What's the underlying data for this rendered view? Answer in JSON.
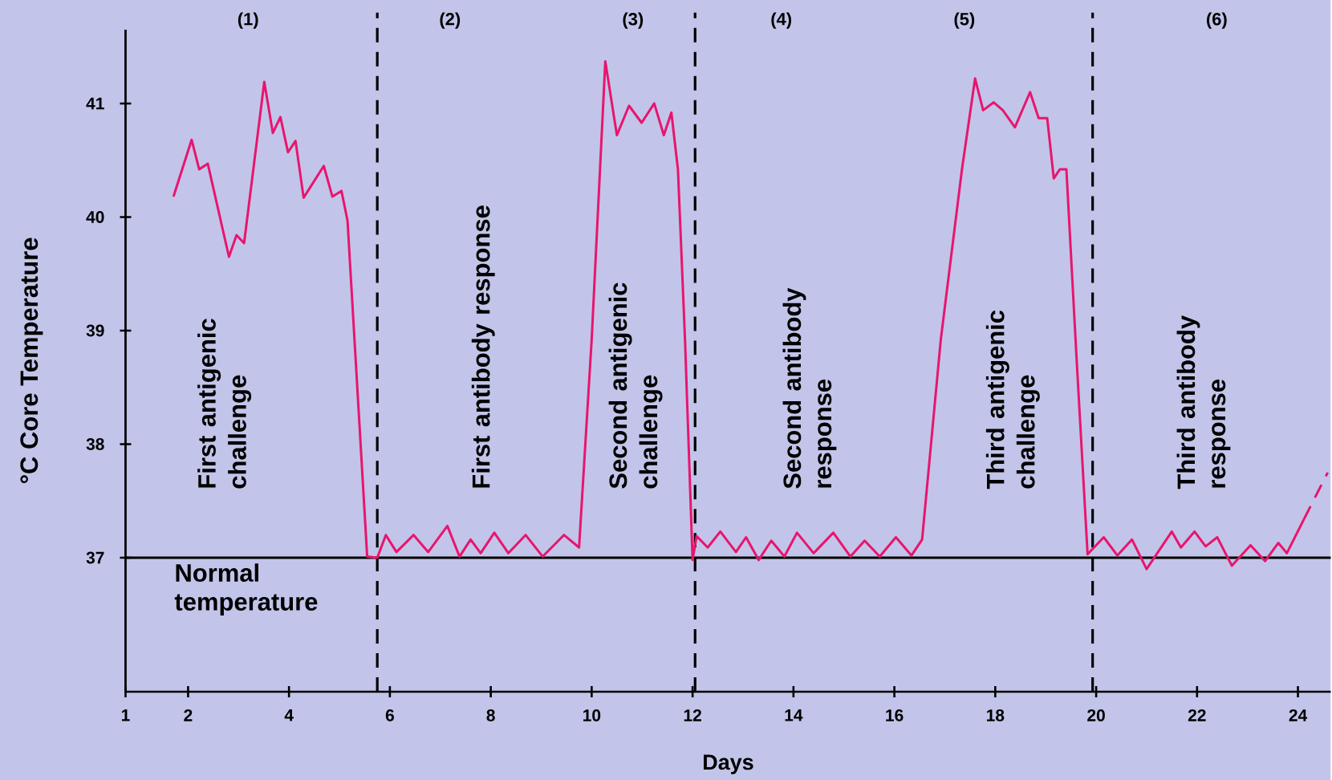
{
  "chart_data": {
    "type": "line",
    "xlabel": "Days",
    "ylabel": "°C Core Temperature",
    "xlim": [
      0.76,
      24.65
    ],
    "ylim": [
      35.82,
      41.65
    ],
    "xticks": [
      {
        "value": 0.76,
        "label": "1"
      },
      2,
      4,
      6,
      8,
      10,
      12,
      14,
      16,
      18,
      20,
      22,
      24
    ],
    "yticks": [
      37,
      38,
      39,
      40,
      41
    ],
    "series": [
      {
        "color": "#e8156e",
        "line_style": "solid",
        "x": [
          1.71,
          2.07,
          2.22,
          2.39,
          2.81,
          2.96,
          3.11,
          3.51,
          3.68,
          3.83,
          3.98,
          4.13,
          4.29,
          4.69,
          4.86,
          5.04,
          5.16,
          5.55,
          5.75,
          5.92,
          6.13,
          6.47,
          6.76,
          7.14,
          7.38,
          7.6,
          7.8,
          8.07,
          8.35,
          8.69,
          9.03,
          9.45,
          9.75,
          10.0,
          10.27,
          10.5,
          10.74,
          10.99,
          11.24,
          11.43,
          11.58,
          11.71,
          11.85,
          12.0,
          12.08,
          12.3,
          12.55,
          12.86,
          13.06,
          13.31,
          13.56,
          13.82,
          14.07,
          14.4,
          14.79,
          15.13,
          15.41,
          15.71,
          16.03,
          16.34,
          16.55,
          16.92,
          17.34,
          17.6,
          17.76,
          17.97,
          18.15,
          18.39,
          18.69,
          18.86,
          19.03,
          19.16,
          19.28,
          19.41,
          19.61,
          19.83,
          20.15,
          20.42,
          20.71,
          21.0,
          21.5,
          21.68,
          21.95,
          22.17,
          22.4,
          22.69,
          23.06,
          23.35,
          23.61,
          23.78,
          24.12
        ],
        "values": [
          40.18,
          40.68,
          40.42,
          40.47,
          39.65,
          39.84,
          39.77,
          41.19,
          40.74,
          40.88,
          40.57,
          40.67,
          40.17,
          40.45,
          40.18,
          40.23,
          39.97,
          37.01,
          37.0,
          37.2,
          37.05,
          37.2,
          37.05,
          37.28,
          37.01,
          37.16,
          37.04,
          37.22,
          37.04,
          37.2,
          37.01,
          37.2,
          37.09,
          38.92,
          41.37,
          40.72,
          40.98,
          40.83,
          41.0,
          40.72,
          40.92,
          40.42,
          38.92,
          36.98,
          37.19,
          37.09,
          37.23,
          37.05,
          37.18,
          36.98,
          37.15,
          37.01,
          37.22,
          37.04,
          37.22,
          37.01,
          37.15,
          37.01,
          37.18,
          37.02,
          37.16,
          38.92,
          40.42,
          41.22,
          40.94,
          41.01,
          40.94,
          40.79,
          41.1,
          40.87,
          40.87,
          40.34,
          40.42,
          40.42,
          38.77,
          37.03,
          37.18,
          37.02,
          37.16,
          36.9,
          37.23,
          37.09,
          37.23,
          37.1,
          37.18,
          36.93,
          37.11,
          36.97,
          37.13,
          37.04,
          37.34
        ]
      },
      {
        "color": "#e8156e",
        "line_style": "dashed",
        "x": [
          24.12,
          24.59
        ],
        "values": [
          37.34,
          37.75
        ]
      }
    ],
    "ref_lines": [
      {
        "axis": "y",
        "value": 37,
        "label": "Normal temperature",
        "color": "#000000",
        "line_style": "solid"
      },
      {
        "axis": "x",
        "value": 5.75,
        "color": "#000000",
        "line_style": "dashed"
      },
      {
        "axis": "x",
        "value": 12.05,
        "color": "#000000",
        "line_style": "dashed"
      },
      {
        "axis": "x",
        "value": 19.93,
        "color": "#000000",
        "line_style": "dashed"
      }
    ],
    "annotations": [
      "(1)",
      "(2)",
      "(3)",
      "(4)",
      "(5)",
      "(6)",
      "First antigenic challenge",
      "First antibody response",
      "Second antigenic challenge",
      "Second antibody response",
      "Third antigenic challenge",
      "Third antibody response"
    ]
  }
}
